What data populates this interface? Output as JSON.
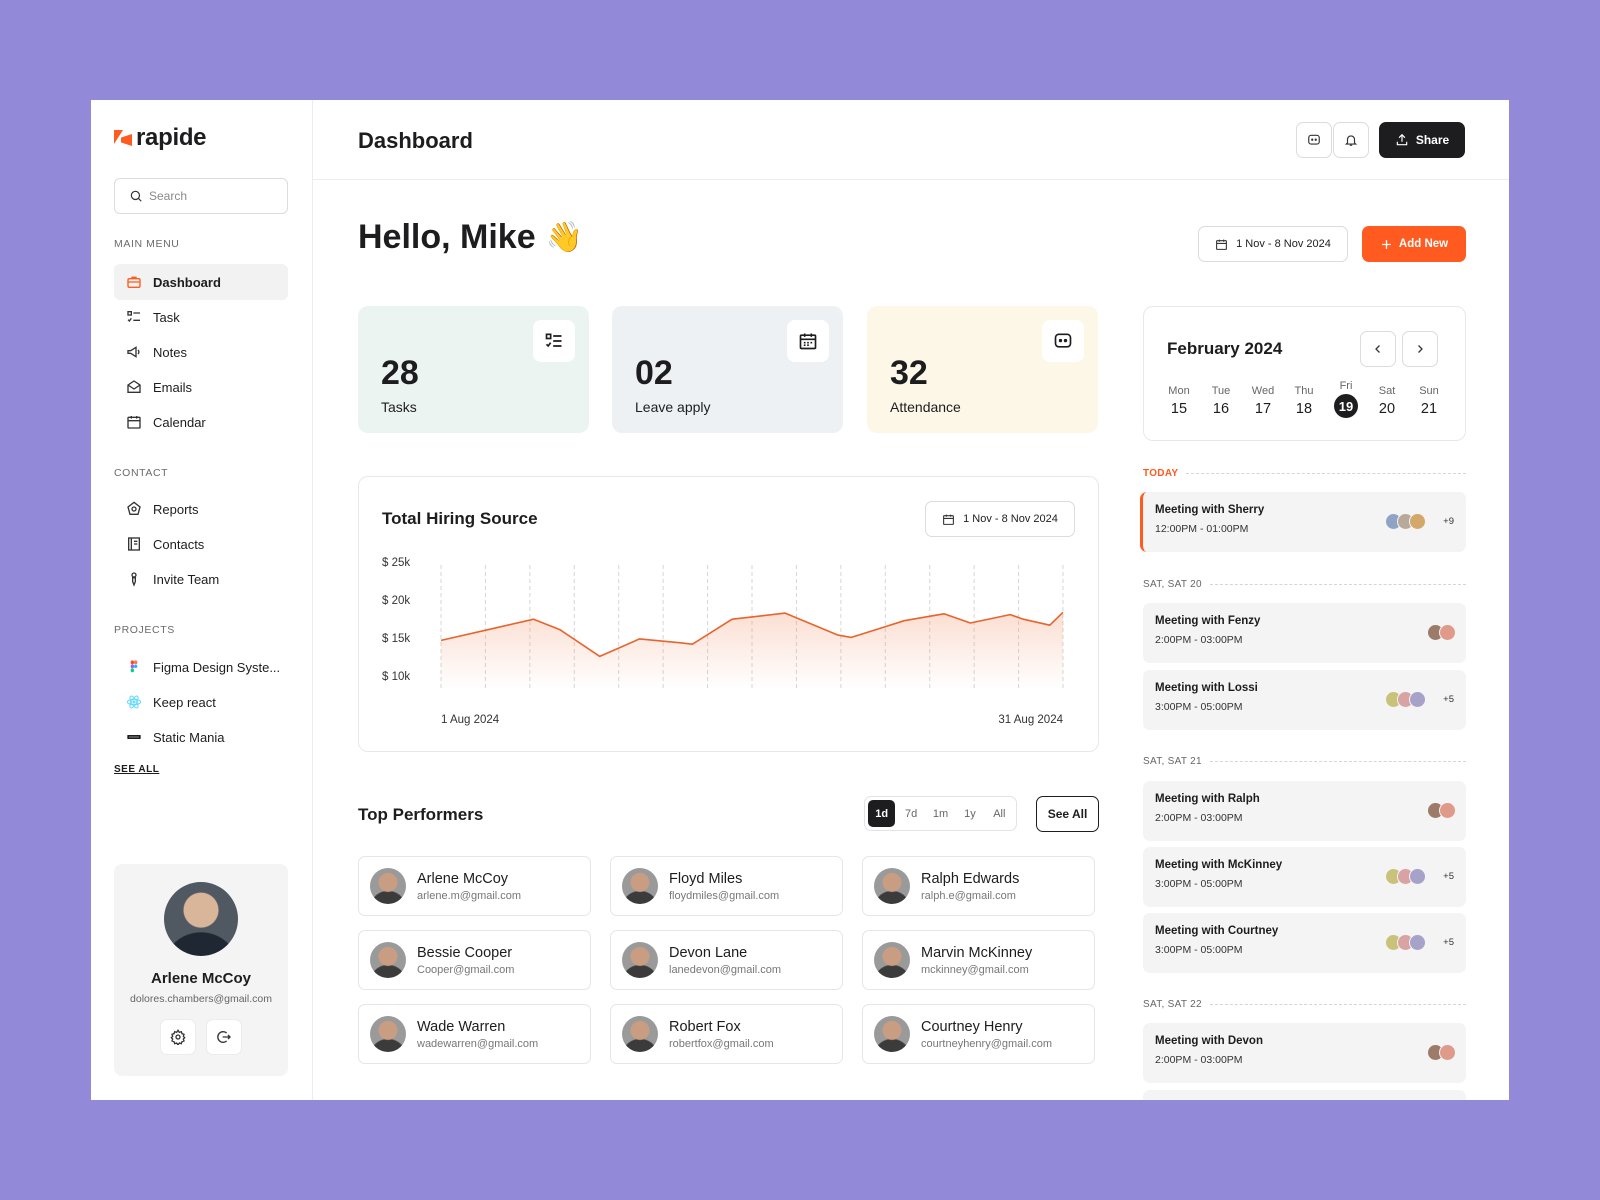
{
  "brand": {
    "name": "rapide"
  },
  "search": {
    "placeholder": "Search"
  },
  "sidebar": {
    "main_menu_label": "MAIN MENU",
    "main_menu": [
      {
        "label": "Dashboard",
        "icon": "briefcase-icon"
      },
      {
        "label": "Task",
        "icon": "checklist-icon"
      },
      {
        "label": "Notes",
        "icon": "megaphone-icon"
      },
      {
        "label": "Emails",
        "icon": "envelope-icon"
      },
      {
        "label": "Calendar",
        "icon": "calendar-icon"
      }
    ],
    "contact_label": "CONTACT",
    "contact": [
      {
        "label": "Reports",
        "icon": "report-icon"
      },
      {
        "label": "Contacts",
        "icon": "contacts-book-icon"
      },
      {
        "label": "Invite Team",
        "icon": "invite-icon"
      }
    ],
    "projects_label": "PROJECTS",
    "projects": [
      {
        "label": "Figma Design Syste...",
        "icon": "figma-icon"
      },
      {
        "label": "Keep react",
        "icon": "react-icon"
      },
      {
        "label": "Static Mania",
        "icon": "static-mania-icon"
      }
    ],
    "see_all": "SEE ALL"
  },
  "profile": {
    "name": "Arlene McCoy",
    "email": "dolores.chambers@gmail.com"
  },
  "header": {
    "title": "Dashboard",
    "share_label": "Share"
  },
  "greeting": {
    "text": "Hello, Mike",
    "emoji": "👋"
  },
  "date_range": "1 Nov - 8 Nov 2024",
  "add_new_label": "Add New",
  "colors": {
    "accent": "#ff5a1f",
    "dark": "#1d1d1f",
    "tasks_bg": "#ecf4f1",
    "leave_bg": "#edf1f4",
    "attendance_bg": "#fdf7e8"
  },
  "stats": [
    {
      "value": "28",
      "label": "Tasks",
      "icon": "checklist-icon"
    },
    {
      "value": "02",
      "label": "Leave apply",
      "icon": "calendar-icon"
    },
    {
      "value": "32",
      "label": "Attendance",
      "icon": "chat-icon"
    }
  ],
  "chart_data": {
    "type": "area",
    "title": "Total Hiring Source",
    "date_range": "1 Nov - 8 Nov 2024",
    "y_ticks": [
      "$ 25k",
      "$ 20k",
      "$ 15k",
      "$ 10k"
    ],
    "ylim": [
      10,
      25
    ],
    "x_labels": [
      "1 Aug 2024",
      "31 Aug 2024"
    ],
    "x": [
      1,
      5,
      8,
      10,
      13,
      16,
      19,
      20,
      23,
      27,
      31,
      32,
      36,
      39,
      41,
      44,
      45,
      47,
      48
    ],
    "values": [
      15.6,
      17.2,
      18.4,
      17.0,
      13.5,
      15.8,
      15.3,
      15.1,
      18.4,
      19.2,
      16.3,
      16.0,
      18.2,
      19.1,
      17.9,
      19.0,
      18.4,
      17.6,
      19.3
    ],
    "series": [
      {
        "values_desc": "hiring cost in $k"
      }
    ],
    "grid": "vertical dashed",
    "color": "#e8642c"
  },
  "performers": {
    "title": "Top Performers",
    "ranges": [
      "1d",
      "7d",
      "1m",
      "1y",
      "All"
    ],
    "selected_range": "1d",
    "see_all": "See All",
    "people": [
      {
        "name": "Arlene McCoy",
        "email": "arlene.m@gmail.com"
      },
      {
        "name": "Floyd Miles",
        "email": "floydmiles@gmail.com"
      },
      {
        "name": "Ralph Edwards",
        "email": "ralph.e@gmail.com"
      },
      {
        "name": "Bessie Cooper",
        "email": "Cooper@gmail.com"
      },
      {
        "name": "Devon Lane",
        "email": "lanedevon@gmail.com"
      },
      {
        "name": "Marvin McKinney",
        "email": "mckinney@gmail.com"
      },
      {
        "name": "Wade Warren",
        "email": "wadewarren@gmail.com"
      },
      {
        "name": "Robert Fox",
        "email": "robertfox@gmail.com"
      },
      {
        "name": "Courtney Henry",
        "email": "courtneyhenry@gmail.com"
      }
    ]
  },
  "calendar": {
    "month": "February 2024",
    "days": [
      {
        "name": "Mon",
        "date": "15"
      },
      {
        "name": "Tue",
        "date": "16"
      },
      {
        "name": "Wed",
        "date": "17"
      },
      {
        "name": "Thu",
        "date": "18"
      },
      {
        "name": "Fri",
        "date": "19",
        "selected": true
      },
      {
        "name": "Sat",
        "date": "20"
      },
      {
        "name": "Sun",
        "date": "21"
      }
    ]
  },
  "schedule": {
    "groups": [
      "TODAY",
      "SAT, SAT 20",
      "SAT, SAT 21",
      "SAT, SAT 22"
    ],
    "meetings": [
      {
        "title": "Meeting with Sherry",
        "time": "12:00PM - 01:00PM",
        "more": "+9"
      },
      {
        "title": "Meeting with Fenzy",
        "time": "2:00PM - 03:00PM",
        "more": ""
      },
      {
        "title": "Meeting with Lossi",
        "time": "3:00PM - 05:00PM",
        "more": "+5"
      },
      {
        "title": "Meeting with Ralph",
        "time": "2:00PM - 03:00PM",
        "more": ""
      },
      {
        "title": "Meeting with McKinney",
        "time": "3:00PM - 05:00PM",
        "more": "+5"
      },
      {
        "title": "Meeting with Courtney",
        "time": "3:00PM - 05:00PM",
        "more": "+5"
      },
      {
        "title": "Meeting with Devon",
        "time": "2:00PM - 03:00PM",
        "more": ""
      }
    ]
  }
}
